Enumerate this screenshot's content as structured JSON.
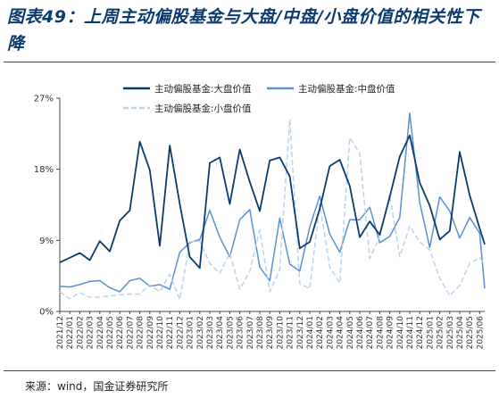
{
  "title": "图表49：上周主动偏股基金与大盘/中盘/小盘价值的相关性下降",
  "source": "来源：wind，国金证券研究所",
  "chart_data": {
    "type": "line",
    "ylim": [
      0,
      27
    ],
    "yticks": [
      "0%",
      "9%",
      "18%",
      "27%"
    ],
    "ytick_values": [
      0,
      9,
      18,
      27
    ],
    "grid": false,
    "legend_position": "top-center",
    "xtick_labels": [
      "2021/12",
      "2022/01",
      "2022/02",
      "2022/03",
      "2022/04",
      "2022/05",
      "2022/06",
      "2022/07",
      "2022/08",
      "2022/09",
      "2022/10",
      "2022/11",
      "2022/12",
      "2023/01",
      "2023/02",
      "2023/03",
      "2023/04",
      "2023/05",
      "2023/06",
      "2023/07",
      "2023/08",
      "2023/09",
      "2023/10",
      "2023/11",
      "2023/12",
      "2024/01",
      "2024/02",
      "2024/03",
      "2024/04",
      "2024/05",
      "2024/06",
      "2024/07",
      "2024/08",
      "2024/09",
      "2024/10",
      "2024/11",
      "2024/12",
      "2025/01",
      "2025/02",
      "2025/03",
      "2025/04",
      "2025/05",
      "2025/06"
    ],
    "x_month_index": [
      0,
      1,
      2,
      3,
      4,
      5,
      6,
      7,
      8,
      9,
      10,
      11,
      12,
      13,
      14,
      15,
      16,
      17,
      18,
      19,
      20,
      21,
      22,
      23,
      24,
      25,
      26,
      27,
      28,
      29,
      30,
      31,
      32,
      33,
      34,
      35,
      36,
      37,
      38,
      39,
      40,
      41,
      42,
      42.5
    ],
    "series": [
      {
        "name": "主动偏股基金:大盘价值",
        "color": "#0b3a6f",
        "dash": "",
        "values": [
          6.2,
          6.8,
          7.4,
          6.5,
          8.9,
          7.6,
          11.5,
          12.8,
          21.5,
          17.9,
          8.3,
          21.0,
          13.6,
          6.9,
          5.5,
          18.8,
          19.5,
          13.6,
          20.5,
          16.4,
          12.7,
          19.1,
          19.5,
          17.1,
          8.0,
          8.8,
          13.0,
          18.4,
          19.2,
          15.9,
          9.4,
          11.4,
          9.7,
          14.5,
          19.6,
          22.3,
          16.3,
          13.4,
          9.1,
          10.2,
          20.2,
          14.7,
          10.5,
          8.5
        ]
      },
      {
        "name": "主动偏股基金:中盘价值",
        "color": "#5b8fd1",
        "dash": "",
        "values": [
          3.2,
          3.1,
          3.4,
          3.8,
          3.9,
          3.0,
          2.5,
          3.9,
          4.2,
          3.2,
          3.4,
          2.8,
          7.5,
          8.7,
          9.1,
          12.8,
          9.4,
          6.9,
          11.6,
          12.9,
          5.6,
          3.9,
          11.8,
          6.0,
          5.1,
          10.7,
          14.6,
          9.8,
          7.5,
          11.6,
          11.6,
          13.2,
          8.7,
          9.5,
          11.9,
          25.1,
          13.8,
          8.1,
          14.5,
          12.7,
          9.3,
          11.9,
          9.9,
          2.9
        ]
      },
      {
        "name": "主动偏股基金:小盘价值",
        "color": "#bcd3ec",
        "dash": "6,3",
        "values": [
          2.5,
          1.6,
          2.4,
          1.8,
          1.8,
          2.0,
          2.1,
          2.2,
          2.2,
          3.4,
          2.5,
          4.7,
          1.5,
          8.8,
          8.9,
          6.1,
          4.8,
          7.4,
          2.8,
          5.1,
          10.3,
          2.5,
          5.3,
          24.3,
          3.5,
          2.9,
          13.6,
          5.6,
          3.6,
          22.0,
          20.0,
          6.7,
          9.5,
          14.8,
          6.9,
          10.8,
          8.8,
          7.8,
          4.2,
          2.0,
          3.3,
          6.1,
          6.8,
          6.0
        ]
      }
    ]
  }
}
